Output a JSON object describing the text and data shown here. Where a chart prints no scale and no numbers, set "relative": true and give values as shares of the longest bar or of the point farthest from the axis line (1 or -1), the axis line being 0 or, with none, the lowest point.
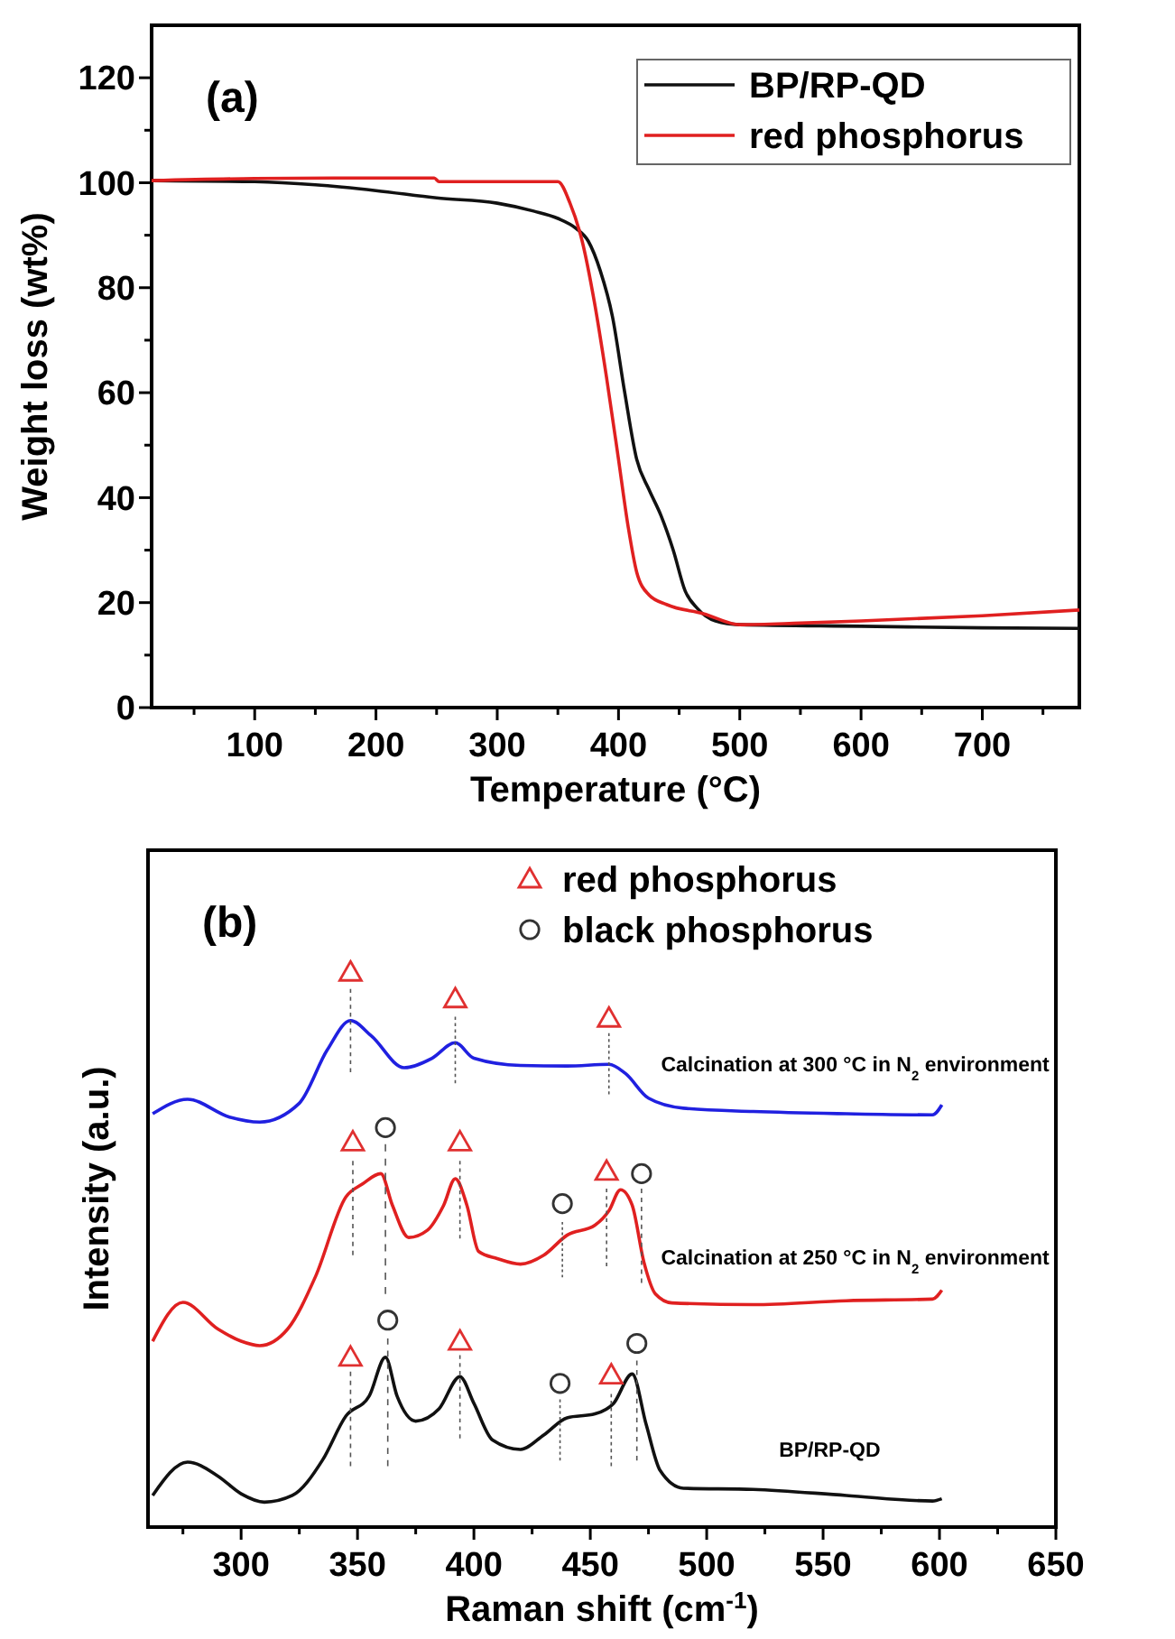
{
  "chart_data": [
    {
      "type": "line",
      "title": "(a)",
      "xlabel": "Temperature (°C)",
      "ylabel": "Weight loss (wt%)",
      "xlim": [
        15,
        780
      ],
      "ylim": [
        0,
        130
      ],
      "xticks": [
        {
          "value": 50,
          "label": null
        },
        100,
        {
          "value": 150,
          "label": null
        },
        200,
        {
          "value": 250,
          "label": null
        },
        300,
        {
          "value": 350,
          "label": null
        },
        400,
        {
          "value": 450,
          "label": null
        },
        500,
        {
          "value": 550,
          "label": null
        },
        600,
        {
          "value": 650,
          "label": null
        },
        700,
        {
          "value": 750,
          "label": null
        }
      ],
      "yticks": [
        0,
        {
          "value": 10,
          "label": null
        },
        20,
        {
          "value": 30,
          "label": null
        },
        40,
        {
          "value": 50,
          "label": null
        },
        60,
        {
          "value": 70,
          "label": null
        },
        80,
        {
          "value": 90,
          "label": null
        },
        100,
        {
          "value": 110,
          "label": null
        },
        120
      ],
      "legend": "top right",
      "grid": false,
      "line_style": "solid",
      "series": [
        {
          "name": "BP/RP-QD",
          "color": "#111111",
          "x": [
            15,
            100,
            150,
            200,
            250,
            300,
            330,
            350,
            365,
            375,
            385,
            395,
            405,
            415,
            425,
            435,
            445,
            455,
            465,
            480,
            500,
            600,
            700,
            780
          ],
          "values": [
            100.4,
            100.2,
            99.6,
            98.5,
            97.1,
            96.1,
            94.6,
            93.2,
            91.3,
            88.9,
            83.2,
            74.5,
            60.2,
            47.3,
            41.6,
            36.6,
            30.1,
            22.2,
            18.9,
            16.5,
            15.8,
            15.5,
            15.2,
            15.1
          ]
        },
        {
          "name": "red phosphorus",
          "color": "#e02020",
          "x": [
            15,
            100,
            200,
            248,
            252,
            350,
            360,
            370,
            380,
            390,
            400,
            408,
            415,
            425,
            440,
            470,
            500,
            550,
            600,
            700,
            780
          ],
          "values": [
            100.4,
            100.8,
            100.9,
            100.9,
            100.2,
            100.2,
            96.1,
            88.9,
            77.4,
            63.1,
            47.3,
            34.4,
            25.8,
            21.5,
            19.6,
            17.9,
            15.8,
            16.1,
            16.5,
            17.5,
            18.6
          ]
        }
      ]
    },
    {
      "type": "line",
      "title": "(b)",
      "xlabel": "Raman shift (cm$^{-1}$)",
      "ylabel": "Intensity (a.u.)",
      "relative": true,
      "xlim": [
        260,
        650
      ],
      "xticks": [
        {
          "value": 275,
          "label": null
        },
        300,
        {
          "value": 325,
          "label": null
        },
        350,
        {
          "value": 375,
          "label": null
        },
        400,
        {
          "value": 425,
          "label": null
        },
        450,
        {
          "value": 475,
          "label": null
        },
        500,
        {
          "value": 525,
          "label": null
        },
        550,
        {
          "value": 575,
          "label": null
        },
        600,
        {
          "value": 625,
          "label": null
        },
        650
      ],
      "legend": "top",
      "grid": false,
      "series": [
        {
          "color": "#2020e0",
          "x": [
            262,
            277,
            295,
            308,
            325,
            337,
            347,
            356,
            370,
            382,
            392,
            400,
            420,
            440,
            458,
            465,
            475,
            490,
            520,
            560,
            597,
            601
          ],
          "values": [
            0.745,
            0.771,
            0.739,
            0.73,
            0.764,
            0.86,
            0.913,
            0.885,
            0.828,
            0.845,
            0.873,
            0.845,
            0.832,
            0.831,
            0.834,
            0.818,
            0.773,
            0.755,
            0.749,
            0.745,
            0.743,
            0.761
          ]
        },
        {
          "color": "#e02020",
          "x": [
            262,
            275,
            290,
            300,
            308,
            320,
            332,
            345,
            352,
            360,
            365,
            372,
            380,
            387,
            392,
            397,
            402,
            410,
            420,
            430,
            440,
            452,
            458,
            463,
            468,
            473,
            478,
            485,
            520,
            560,
            597,
            601
          ],
          "values": [
            0.335,
            0.405,
            0.357,
            0.335,
            0.327,
            0.357,
            0.452,
            0.595,
            0.618,
            0.637,
            0.58,
            0.522,
            0.535,
            0.58,
            0.628,
            0.58,
            0.497,
            0.484,
            0.474,
            0.49,
            0.526,
            0.544,
            0.57,
            0.608,
            0.58,
            0.478,
            0.42,
            0.404,
            0.401,
            0.408,
            0.411,
            0.427
          ]
        },
        {
          "color": "#111111",
          "x": [
            262,
            277,
            290,
            300,
            310,
            322,
            335,
            345,
            355,
            362,
            367,
            375,
            385,
            394,
            400,
            408,
            420,
            430,
            440,
            452,
            460,
            468,
            474,
            480,
            490,
            520,
            560,
            597,
            601
          ],
          "values": [
            0.057,
            0.117,
            0.092,
            0.06,
            0.045,
            0.057,
            0.121,
            0.2,
            0.236,
            0.306,
            0.236,
            0.191,
            0.213,
            0.271,
            0.223,
            0.157,
            0.14,
            0.166,
            0.197,
            0.204,
            0.223,
            0.276,
            0.185,
            0.102,
            0.07,
            0.068,
            0.057,
            0.047,
            0.051
          ]
        },
        {
          "color": "#555555",
          "line_style": "dotted",
          "x": [
            347,
            347
          ],
          "values": [
            0.97,
            0.82
          ]
        },
        {
          "color": "#555555",
          "line_style": "dotted",
          "x": [
            392,
            392
          ],
          "values": [
            0.92,
            0.8
          ]
        },
        {
          "color": "#555555",
          "line_style": "dotted",
          "x": [
            458,
            458
          ],
          "values": [
            0.89,
            0.78
          ]
        },
        {
          "color": "#555555",
          "line_style": "dotted",
          "x": [
            348,
            348
          ],
          "values": [
            0.66,
            0.49
          ]
        },
        {
          "color": "#555555",
          "line_style": "dotted",
          "x": [
            394,
            394
          ],
          "values": [
            0.66,
            0.52
          ]
        },
        {
          "color": "#555555",
          "line_style": "dotted",
          "x": [
            457,
            457
          ],
          "values": [
            0.61,
            0.47
          ]
        },
        {
          "color": "#555555",
          "line_style": "dotted",
          "x": [
            347,
            347
          ],
          "values": [
            0.28,
            0.11
          ]
        },
        {
          "color": "#555555",
          "line_style": "dotted",
          "x": [
            394,
            394
          ],
          "values": [
            0.31,
            0.16
          ]
        },
        {
          "color": "#555555",
          "line_style": "dotted",
          "x": [
            459,
            459
          ],
          "values": [
            0.24,
            0.11
          ]
        },
        {
          "color": "#555555",
          "line_style": "dotted",
          "x": [
            362,
            362
          ],
          "values": [
            0.69,
            0.42
          ]
        },
        {
          "color": "#555555",
          "line_style": "dotted",
          "x": [
            438,
            438
          ],
          "values": [
            0.55,
            0.45
          ]
        },
        {
          "color": "#555555",
          "line_style": "dotted",
          "x": [
            472,
            472
          ],
          "values": [
            0.61,
            0.44
          ]
        },
        {
          "color": "#555555",
          "line_style": "dotted",
          "x": [
            363,
            363
          ],
          "values": [
            0.34,
            0.11
          ]
        },
        {
          "color": "#555555",
          "line_style": "dotted",
          "x": [
            437,
            437
          ],
          "values": [
            0.23,
            0.12
          ]
        },
        {
          "color": "#555555",
          "line_style": "dotted",
          "x": [
            470,
            470
          ],
          "values": [
            0.3,
            0.12
          ]
        },
        {
          "type": "scatter",
          "name": "red phosphorus",
          "marker": "triangle",
          "color": "#e03030",
          "x": [
            347,
            392,
            458,
            348,
            394,
            457,
            347,
            394,
            459
          ],
          "values": [
            1.0,
            0.952,
            0.917,
            0.694,
            0.694,
            0.641,
            0.306,
            0.335,
            0.274
          ]
        },
        {
          "type": "scatter",
          "name": "black phosphorus",
          "marker": "circle",
          "color": "#333333",
          "x": [
            362,
            438,
            472,
            363,
            437,
            470
          ],
          "values": [
            0.72,
            0.583,
            0.637,
            0.373,
            0.259,
            0.331
          ]
        }
      ],
      "annotations": [
        "Calcination at 300 °C in N$_{2}$ environment",
        "Calcination at 250 °C in N$_{2}$ environment",
        "BP/RP-QD"
      ]
    }
  ]
}
